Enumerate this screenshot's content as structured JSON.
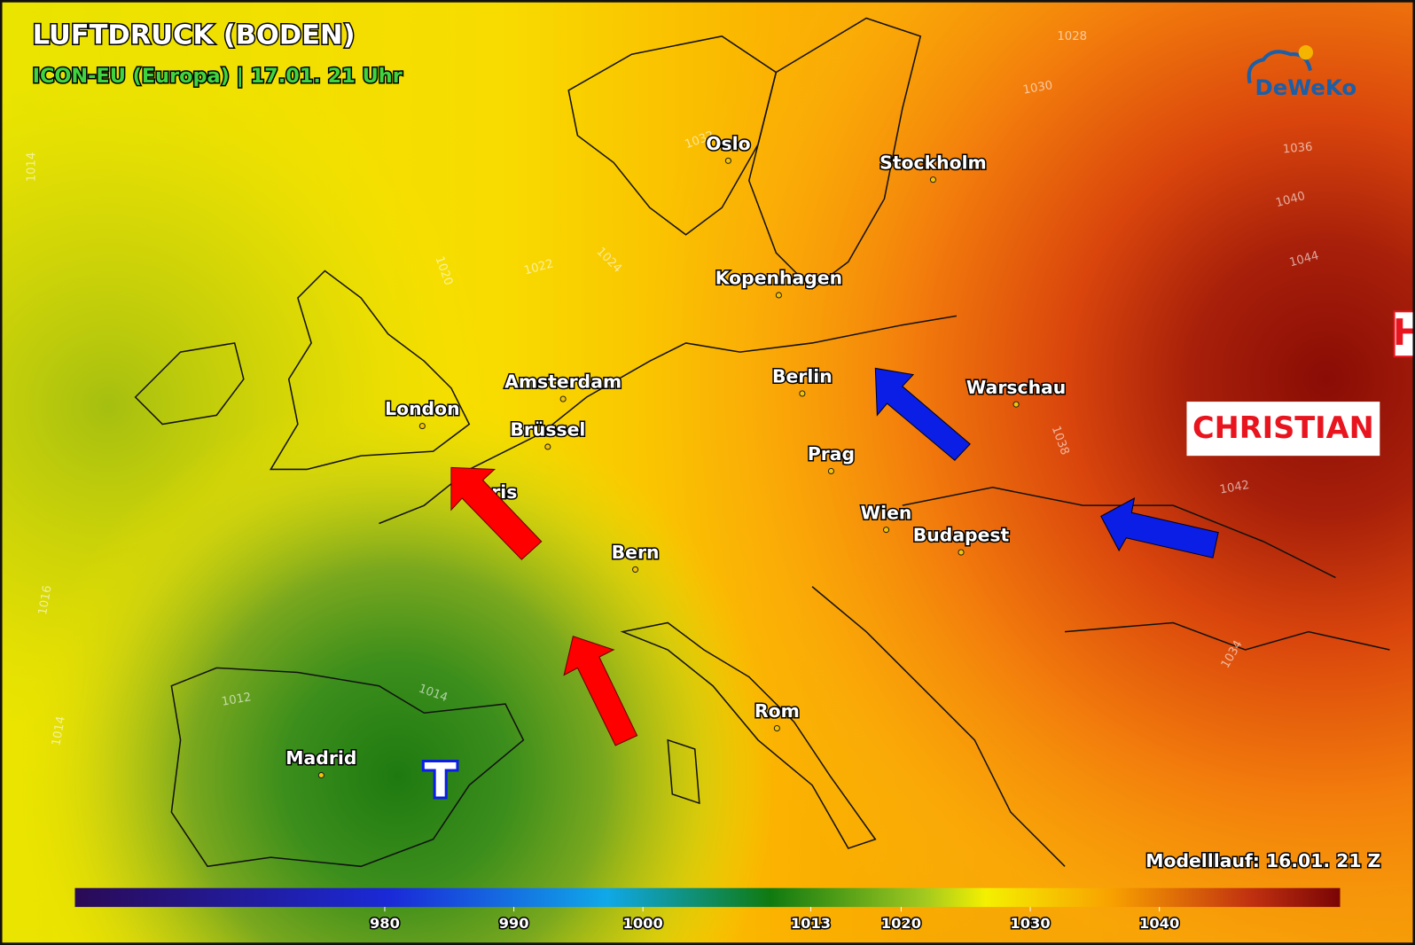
{
  "header": {
    "title": "LUFTDRUCK (BODEN)",
    "subtitle": "ICON-EU (Europa) | 17.01. 21 Uhr",
    "logo": "DeWeKo"
  },
  "cities": [
    "Oslo",
    "Stockholm",
    "Kopenhagen",
    "Berlin",
    "Warschau",
    "Amsterdam",
    "Brüssel",
    "London",
    "Paris",
    "Prag",
    "Wien",
    "Budapest",
    "Bern",
    "Rom",
    "Madrid"
  ],
  "pressure_systems": {
    "high_name": "CHRISTIAN",
    "low": "T",
    "high": "H"
  },
  "isobar_labels": [
    1028,
    1030,
    1032,
    1036,
    1040,
    1044,
    1042,
    1038,
    1034,
    1024,
    1022,
    1020,
    1014,
    1016,
    1012,
    1014,
    1014
  ],
  "model_run": "Modelllauf: 16.01. 21 Z",
  "colorbar": {
    "range": [
      956,
      1054
    ],
    "ticks": [
      980,
      990,
      1000,
      1013,
      1020,
      1030,
      1040
    ]
  }
}
